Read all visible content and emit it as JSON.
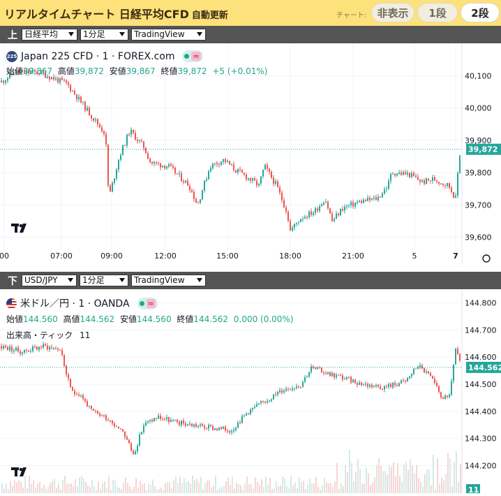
{
  "header": {
    "title": "リアルタイムチャート 日経平均CFD",
    "subtitle": "自動更新",
    "chart_label": "チャート:",
    "buttons": [
      "非表示",
      "1段",
      "2段"
    ],
    "active_button": "2段"
  },
  "top": {
    "position_label": "上",
    "selects": [
      "日経平均",
      "1分足",
      "TradingView"
    ],
    "symbol": "Japan 225 CFD · 1 · FOREX.com",
    "logo_text": "225",
    "ohlc": {
      "open_label": "始値",
      "open": "39,867",
      "high_label": "高値",
      "high": "39,872",
      "low_label": "安値",
      "low": "39,867",
      "close_label": "終値",
      "close": "39,872",
      "change": "+5 (+0.01%)"
    },
    "price_tag": "39,872"
  },
  "bottom": {
    "position_label": "下",
    "selects": [
      "USD/JPY",
      "1分足",
      "TradingView"
    ],
    "symbol": "米ドル／円 · 1 · OANDA",
    "ohlc": {
      "open_label": "始値",
      "open": "144.560",
      "high_label": "高値",
      "high": "144.562",
      "low_label": "安値",
      "low": "144.560",
      "close_label": "終値",
      "close": "144.562",
      "change": "0.000 (0.00%)"
    },
    "volume_label": "出来高・ティック",
    "volume_value": "11",
    "price_tag": "144.562",
    "volume_tag": "11"
  },
  "colors": {
    "up": "#26a69a",
    "down": "#ef5350",
    "header_bg": "#fde17a",
    "bar_bg": "#545454"
  },
  "chart_data": [
    {
      "type": "candlestick",
      "name": "Japan 225 CFD",
      "x_ticks": [
        "00",
        "07:00",
        "09:00",
        "12:00",
        "15:00",
        "18:00",
        "21:00",
        "5",
        "7"
      ],
      "y_ticks": [
        39600,
        39700,
        39800,
        39900,
        40000,
        40100
      ],
      "y_tick_labels": [
        "39,600",
        "39,700",
        "39,800",
        "39,900",
        "40,000",
        "40,100"
      ],
      "ylim": [
        39560,
        40200
      ],
      "last": 39872,
      "path": [
        [
          0,
          40080
        ],
        [
          20,
          40110
        ],
        [
          55,
          40110
        ],
        [
          95,
          40075
        ],
        [
          125,
          39990
        ],
        [
          150,
          39920
        ],
        [
          155,
          39720
        ],
        [
          170,
          39850
        ],
        [
          185,
          39930
        ],
        [
          205,
          39880
        ],
        [
          215,
          39830
        ],
        [
          240,
          39820
        ],
        [
          260,
          39780
        ],
        [
          270,
          39760
        ],
        [
          282,
          39700
        ],
        [
          300,
          39820
        ],
        [
          320,
          39840
        ],
        [
          335,
          39810
        ],
        [
          350,
          39790
        ],
        [
          370,
          39760
        ],
        [
          378,
          39820
        ],
        [
          395,
          39760
        ],
        [
          410,
          39680
        ],
        [
          415,
          39620
        ],
        [
          430,
          39660
        ],
        [
          450,
          39680
        ],
        [
          465,
          39720
        ],
        [
          475,
          39650
        ],
        [
          490,
          39690
        ],
        [
          515,
          39710
        ],
        [
          540,
          39720
        ],
        [
          555,
          39760
        ],
        [
          560,
          39800
        ],
        [
          585,
          39795
        ],
        [
          605,
          39770
        ],
        [
          620,
          39780
        ],
        [
          642,
          39760
        ],
        [
          652,
          39720
        ],
        [
          657,
          39850
        ],
        [
          662,
          39890
        ],
        [
          666,
          39872
        ]
      ]
    },
    {
      "type": "candlestick",
      "name": "米ドル／円",
      "x_ticks": [],
      "y_ticks": [
        144.2,
        144.3,
        144.4,
        144.5,
        144.6,
        144.7,
        144.8
      ],
      "y_tick_labels": [
        "144.200",
        "144.300",
        "144.400",
        "144.500",
        "144.600",
        "144.700",
        "144.800"
      ],
      "ylim": [
        144.15,
        144.85
      ],
      "last": 144.562,
      "path": [
        [
          0,
          144.64
        ],
        [
          30,
          144.62
        ],
        [
          60,
          144.64
        ],
        [
          85,
          144.63
        ],
        [
          100,
          144.48
        ],
        [
          115,
          144.46
        ],
        [
          130,
          144.4
        ],
        [
          150,
          144.38
        ],
        [
          175,
          144.33
        ],
        [
          190,
          144.24
        ],
        [
          205,
          144.35
        ],
        [
          225,
          144.38
        ],
        [
          250,
          144.36
        ],
        [
          275,
          144.35
        ],
        [
          300,
          144.34
        ],
        [
          330,
          144.33
        ],
        [
          355,
          144.4
        ],
        [
          380,
          144.44
        ],
        [
          405,
          144.48
        ],
        [
          430,
          144.5
        ],
        [
          445,
          144.56
        ],
        [
          470,
          144.54
        ],
        [
          495,
          144.52
        ],
        [
          520,
          144.5
        ],
        [
          550,
          144.49
        ],
        [
          580,
          144.51
        ],
        [
          598,
          144.57
        ],
        [
          615,
          144.53
        ],
        [
          630,
          144.46
        ],
        [
          642,
          144.44
        ],
        [
          652,
          144.63
        ],
        [
          660,
          144.56
        ]
      ]
    }
  ]
}
